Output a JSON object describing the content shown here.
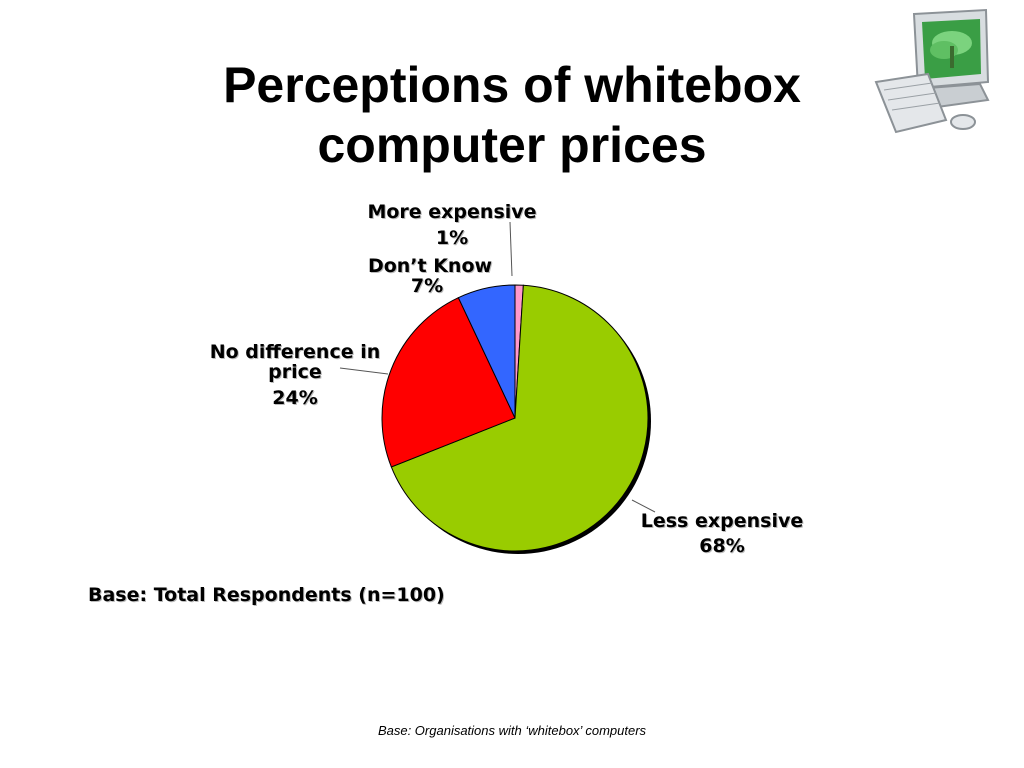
{
  "slide": {
    "title_lines": [
      "Perceptions of whitebox",
      "computer prices"
    ],
    "base_note": "Base: Total Respondents (n=100)",
    "footer_note": "Base:  Organisations with ‘whitebox’ computers"
  },
  "clipart": {
    "icon": "desktop-computer-icon"
  },
  "chart_data": {
    "type": "pie",
    "slices": [
      {
        "name": "More expensive",
        "value": 1,
        "label": "1%",
        "color": "#ff99cc"
      },
      {
        "name": "Less expensive",
        "value": 68,
        "label": "68%",
        "color": "#99cc00"
      },
      {
        "name": "No difference in price",
        "label_lines": [
          "No difference in",
          "price"
        ],
        "value": 24,
        "label": "24%",
        "color": "#ff0000"
      },
      {
        "name": "Don’t Know",
        "value": 7,
        "label": "7%",
        "color": "#3366ff"
      }
    ],
    "start": "12 o'clock",
    "direction": "clockwise"
  }
}
